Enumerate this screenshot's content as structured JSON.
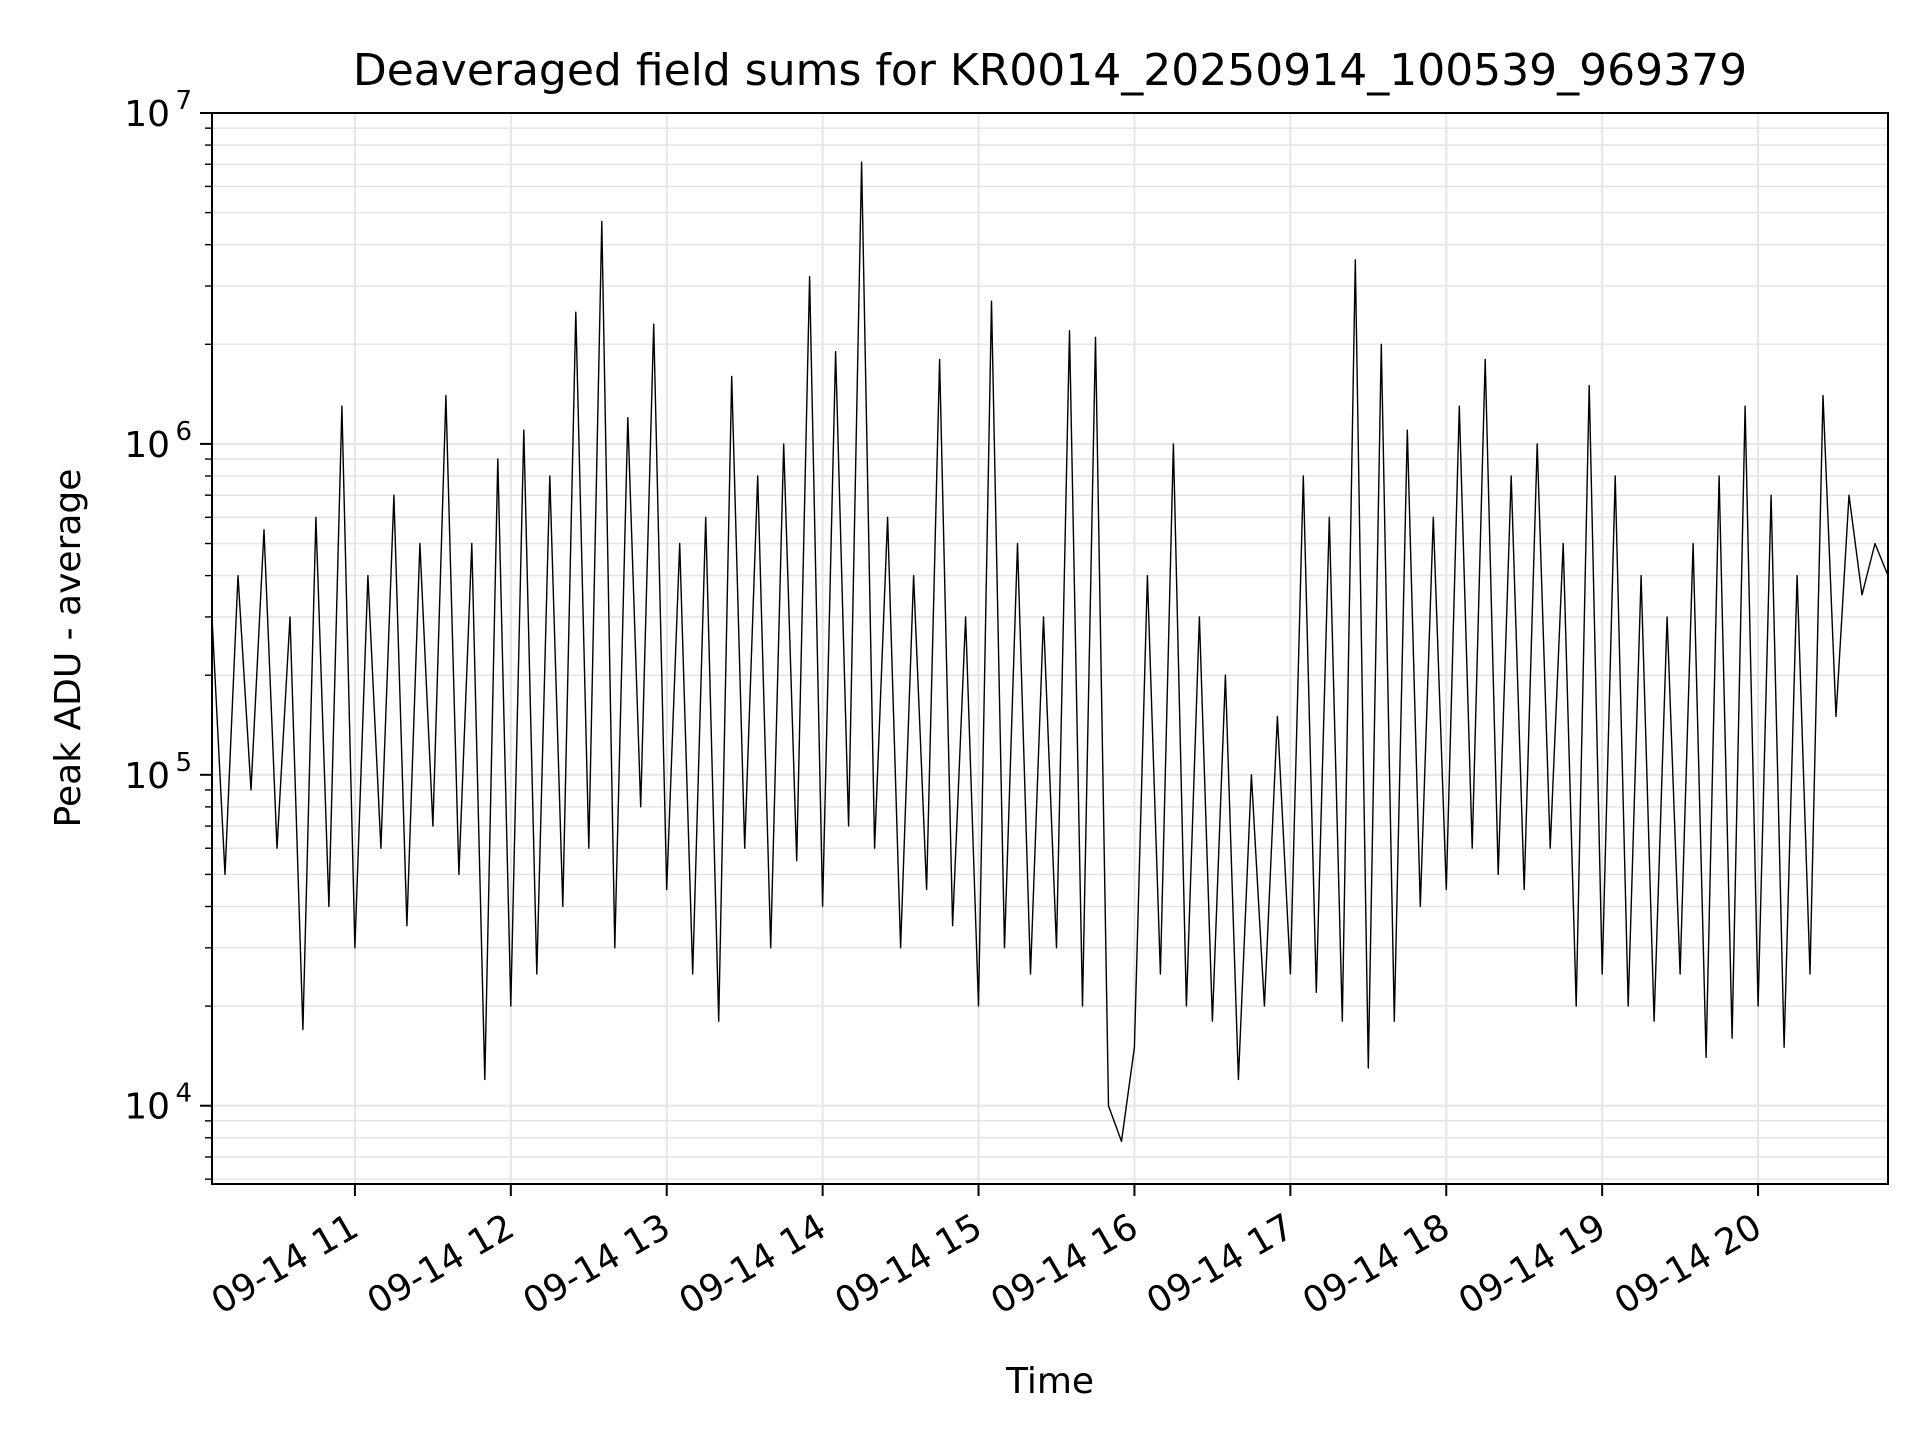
{
  "chart_data": {
    "type": "line",
    "title": "Deaveraged field sums for KR0014_20250914_100539_969379",
    "xlabel": "Time",
    "ylabel": "Peak ADU - average",
    "y_scale": "log",
    "ylim": [
      5800,
      10000000
    ],
    "xlim": [
      "2025-09-14 10:05",
      "2025-09-14 20:50"
    ],
    "grid": true,
    "line_color": "#000000",
    "grid_color": "#e6e6e6",
    "x_ticks": [
      {
        "t": "2025-09-14 11:00",
        "label": "09-14 11"
      },
      {
        "t": "2025-09-14 12:00",
        "label": "09-14 12"
      },
      {
        "t": "2025-09-14 13:00",
        "label": "09-14 13"
      },
      {
        "t": "2025-09-14 14:00",
        "label": "09-14 14"
      },
      {
        "t": "2025-09-14 15:00",
        "label": "09-14 15"
      },
      {
        "t": "2025-09-14 16:00",
        "label": "09-14 16"
      },
      {
        "t": "2025-09-14 17:00",
        "label": "09-14 17"
      },
      {
        "t": "2025-09-14 18:00",
        "label": "09-14 18"
      },
      {
        "t": "2025-09-14 19:00",
        "label": "09-14 19"
      },
      {
        "t": "2025-09-14 20:00",
        "label": "09-14 20"
      }
    ],
    "y_ticks": [
      {
        "value": 10000,
        "base": "10",
        "exp": "4"
      },
      {
        "value": 100000,
        "base": "10",
        "exp": "5"
      },
      {
        "value": 1000000,
        "base": "10",
        "exp": "6"
      },
      {
        "value": 10000000,
        "base": "10",
        "exp": "7"
      }
    ],
    "series": [
      {
        "x": [
          "2025-09-14 10:05",
          "2025-09-14 10:10",
          "2025-09-14 10:15",
          "2025-09-14 10:20",
          "2025-09-14 10:25",
          "2025-09-14 10:30",
          "2025-09-14 10:35",
          "2025-09-14 10:40",
          "2025-09-14 10:45",
          "2025-09-14 10:50",
          "2025-09-14 10:55",
          "2025-09-14 11:00",
          "2025-09-14 11:05",
          "2025-09-14 11:10",
          "2025-09-14 11:15",
          "2025-09-14 11:20",
          "2025-09-14 11:25",
          "2025-09-14 11:30",
          "2025-09-14 11:35",
          "2025-09-14 11:40",
          "2025-09-14 11:45",
          "2025-09-14 11:50",
          "2025-09-14 11:55",
          "2025-09-14 12:00",
          "2025-09-14 12:05",
          "2025-09-14 12:10",
          "2025-09-14 12:15",
          "2025-09-14 12:20",
          "2025-09-14 12:25",
          "2025-09-14 12:30",
          "2025-09-14 12:35",
          "2025-09-14 12:40",
          "2025-09-14 12:45",
          "2025-09-14 12:50",
          "2025-09-14 12:55",
          "2025-09-14 13:00",
          "2025-09-14 13:05",
          "2025-09-14 13:10",
          "2025-09-14 13:15",
          "2025-09-14 13:20",
          "2025-09-14 13:25",
          "2025-09-14 13:30",
          "2025-09-14 13:35",
          "2025-09-14 13:40",
          "2025-09-14 13:45",
          "2025-09-14 13:50",
          "2025-09-14 13:55",
          "2025-09-14 14:00",
          "2025-09-14 14:05",
          "2025-09-14 14:10",
          "2025-09-14 14:15",
          "2025-09-14 14:20",
          "2025-09-14 14:25",
          "2025-09-14 14:30",
          "2025-09-14 14:35",
          "2025-09-14 14:40",
          "2025-09-14 14:45",
          "2025-09-14 14:50",
          "2025-09-14 14:55",
          "2025-09-14 15:00",
          "2025-09-14 15:05",
          "2025-09-14 15:10",
          "2025-09-14 15:15",
          "2025-09-14 15:20",
          "2025-09-14 15:25",
          "2025-09-14 15:30",
          "2025-09-14 15:35",
          "2025-09-14 15:40",
          "2025-09-14 15:45",
          "2025-09-14 15:50",
          "2025-09-14 15:55",
          "2025-09-14 16:00",
          "2025-09-14 16:05",
          "2025-09-14 16:10",
          "2025-09-14 16:15",
          "2025-09-14 16:20",
          "2025-09-14 16:25",
          "2025-09-14 16:30",
          "2025-09-14 16:35",
          "2025-09-14 16:40",
          "2025-09-14 16:45",
          "2025-09-14 16:50",
          "2025-09-14 16:55",
          "2025-09-14 17:00",
          "2025-09-14 17:05",
          "2025-09-14 17:10",
          "2025-09-14 17:15",
          "2025-09-14 17:20",
          "2025-09-14 17:25",
          "2025-09-14 17:30",
          "2025-09-14 17:35",
          "2025-09-14 17:40",
          "2025-09-14 17:45",
          "2025-09-14 17:50",
          "2025-09-14 17:55",
          "2025-09-14 18:00",
          "2025-09-14 18:05",
          "2025-09-14 18:10",
          "2025-09-14 18:15",
          "2025-09-14 18:20",
          "2025-09-14 18:25",
          "2025-09-14 18:30",
          "2025-09-14 18:35",
          "2025-09-14 18:40",
          "2025-09-14 18:45",
          "2025-09-14 18:50",
          "2025-09-14 18:55",
          "2025-09-14 19:00",
          "2025-09-14 19:05",
          "2025-09-14 19:10",
          "2025-09-14 19:15",
          "2025-09-14 19:20",
          "2025-09-14 19:25",
          "2025-09-14 19:30",
          "2025-09-14 19:35",
          "2025-09-14 19:40",
          "2025-09-14 19:45",
          "2025-09-14 19:50",
          "2025-09-14 19:55",
          "2025-09-14 20:00",
          "2025-09-14 20:05",
          "2025-09-14 20:10",
          "2025-09-14 20:15",
          "2025-09-14 20:20",
          "2025-09-14 20:25",
          "2025-09-14 20:30",
          "2025-09-14 20:35",
          "2025-09-14 20:40",
          "2025-09-14 20:45",
          "2025-09-14 20:50"
        ],
        "y": [
          300000,
          50000,
          400000,
          90000,
          550000,
          60000,
          300000,
          17000,
          600000,
          40000,
          1300000,
          30000,
          400000,
          60000,
          700000,
          35000,
          500000,
          70000,
          1400000,
          50000,
          500000,
          12000,
          900000,
          20000,
          1100000,
          25000,
          800000,
          40000,
          2500000,
          60000,
          4700000,
          30000,
          1200000,
          80000,
          2300000,
          45000,
          500000,
          25000,
          600000,
          18000,
          1600000,
          60000,
          800000,
          30000,
          1000000,
          55000,
          3200000,
          40000,
          1900000,
          70000,
          7100000,
          60000,
          600000,
          30000,
          400000,
          45000,
          1800000,
          35000,
          300000,
          20000,
          2700000,
          30000,
          500000,
          25000,
          300000,
          30000,
          2200000,
          20000,
          2100000,
          10000,
          7800,
          15000,
          400000,
          25000,
          1000000,
          20000,
          300000,
          18000,
          200000,
          12000,
          100000,
          20000,
          150000,
          25000,
          800000,
          22000,
          600000,
          18000,
          3600000,
          13000,
          2000000,
          18000,
          1100000,
          40000,
          600000,
          45000,
          1300000,
          60000,
          1800000,
          50000,
          800000,
          45000,
          1000000,
          60000,
          500000,
          20000,
          1500000,
          25000,
          800000,
          20000,
          400000,
          18000,
          300000,
          25000,
          500000,
          14000,
          800000,
          16000,
          1300000,
          20000,
          700000,
          15000,
          400000,
          25000,
          1400000,
          150000,
          700000,
          350000,
          500000,
          400000
        ]
      }
    ]
  }
}
